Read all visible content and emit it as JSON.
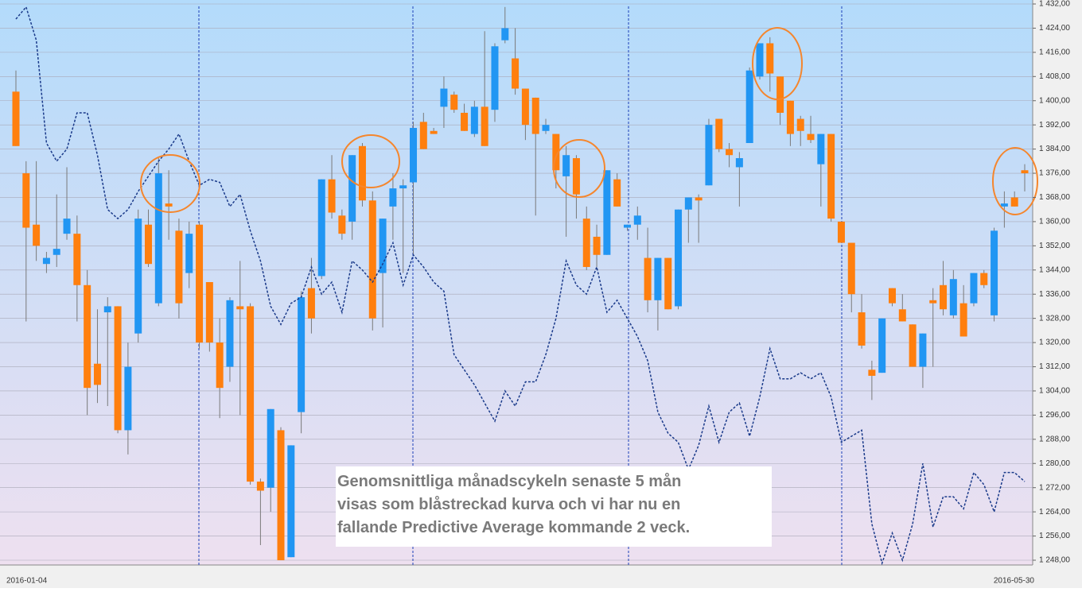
{
  "chart_data": {
    "type": "candlestick",
    "annotation": [
      "Genomsnittliga månadscykeln senaste 5 mån",
      "visas som blåstreckad kurva och vi har nu en",
      "fallande Predictive Average kommande 2 veck."
    ],
    "categories": [
      "2016-01-04",
      null,
      null,
      null,
      null,
      null,
      null,
      null,
      null,
      null,
      null,
      null,
      null,
      null,
      null,
      null,
      null,
      null,
      null,
      null,
      null,
      null,
      null,
      null,
      null,
      null,
      null,
      null,
      null,
      null,
      null,
      null,
      null,
      null,
      null,
      null,
      null,
      null,
      null,
      null,
      null,
      null,
      null,
      null,
      null,
      null,
      null,
      null,
      null,
      null,
      null,
      null,
      null,
      null,
      null,
      null,
      null,
      null,
      null,
      null,
      null,
      null,
      null,
      null,
      null,
      null,
      null,
      null,
      null,
      null,
      null,
      null,
      null,
      null,
      null,
      null,
      null,
      null,
      null,
      null,
      null,
      null,
      null,
      null,
      null,
      null,
      null,
      null,
      null,
      null,
      null,
      null,
      null,
      null,
      null,
      null,
      null,
      null,
      null,
      "2016-05-30"
    ],
    "open": [
      1403,
      1376,
      1359,
      1346,
      1349,
      1356,
      1356,
      1339,
      1313,
      1330,
      1332,
      1291,
      1323,
      1359,
      1333,
      1366,
      1357,
      1343,
      1359,
      1340,
      1320,
      1312,
      1332,
      1332,
      1274,
      1272,
      1291,
      1249,
      1297,
      1338,
      1342,
      1374,
      1362,
      1360,
      1385,
      1367,
      1343,
      1365,
      1371,
      1373,
      1393,
      1390,
      1398,
      1402,
      1396,
      1389,
      1398,
      1397,
      1420,
      1414,
      1404,
      1401,
      1390,
      1389,
      1375,
      1381,
      1361,
      1355,
      1349,
      1374,
      1358,
      1359,
      1348,
      1334,
      1348,
      1332,
      1364,
      1368,
      1372,
      1394,
      1384,
      1378,
      1386,
      1408,
      1419,
      1408,
      1400,
      1394,
      1389,
      1379,
      1389,
      1360,
      1353,
      1330,
      1311,
      1310,
      1338,
      1331,
      1326,
      1312,
      1334,
      1339,
      1329,
      1333,
      1333,
      1343,
      1329,
      1365,
      1368,
      1377
    ],
    "close": [
      1385,
      1358,
      1352,
      1348,
      1351,
      1361,
      1339,
      1305,
      1306,
      1332,
      1291,
      1312,
      1361,
      1346,
      1376,
      1365,
      1333,
      1356,
      1320,
      1320,
      1305,
      1334,
      1331,
      1274,
      1271,
      1298,
      1248,
      1286,
      1335,
      1328,
      1374,
      1363,
      1356,
      1382,
      1367,
      1328,
      1361,
      1371,
      1372,
      1391,
      1384,
      1389,
      1404,
      1397,
      1390,
      1398,
      1385,
      1418,
      1424,
      1404,
      1392,
      1389,
      1392,
      1377,
      1382,
      1369,
      1345,
      1349,
      1377,
      1365,
      1359,
      1362,
      1334,
      1348,
      1331,
      1364,
      1368,
      1367,
      1392,
      1384,
      1382,
      1381,
      1410,
      1419,
      1409,
      1396,
      1389,
      1390,
      1387,
      1389,
      1361,
      1353,
      1336,
      1319,
      1309,
      1328,
      1333,
      1327,
      1312,
      1323,
      1333,
      1331,
      1341,
      1322,
      1343,
      1339,
      1357,
      1366,
      1365,
      1376
    ],
    "high": [
      1410,
      1380,
      1380,
      1350,
      1369,
      1378,
      1362,
      1344,
      1331,
      1335,
      1332,
      1320,
      1364,
      1364,
      1381,
      1377,
      1361,
      1360,
      1360,
      1340,
      1328,
      1335,
      1347,
      1333,
      1275,
      1298,
      1292,
      1286,
      1337,
      1348,
      1374,
      1382,
      1364,
      1382,
      1386,
      1370,
      1361,
      1376,
      1374,
      1393,
      1396,
      1391,
      1408,
      1403,
      1399,
      1400,
      1423,
      1419,
      1431,
      1424,
      1404,
      1401,
      1394,
      1389,
      1385,
      1382,
      1365,
      1359,
      1377,
      1376,
      1359,
      1365,
      1358,
      1348,
      1348,
      1364,
      1368,
      1369,
      1394,
      1394,
      1386,
      1383,
      1411,
      1419,
      1421,
      1408,
      1400,
      1395,
      1395,
      1389,
      1389,
      1360,
      1353,
      1336,
      1314,
      1328,
      1338,
      1336,
      1326,
      1323,
      1338,
      1347,
      1344,
      1339,
      1343,
      1344,
      1358,
      1370,
      1370,
      1379
    ],
    "low": [
      1385,
      1327,
      1347,
      1343,
      1345,
      1354,
      1327,
      1296,
      1300,
      1299,
      1290,
      1283,
      1320,
      1345,
      1332,
      1354,
      1328,
      1338,
      1318,
      1317,
      1295,
      1307,
      1296,
      1273,
      1253,
      1264,
      1248,
      1249,
      1290,
      1323,
      1341,
      1361,
      1354,
      1354,
      1365,
      1324,
      1325,
      1354,
      1343,
      1349,
      1384,
      1389,
      1391,
      1396,
      1390,
      1388,
      1385,
      1393,
      1419,
      1402,
      1387,
      1362,
      1389,
      1371,
      1355,
      1361,
      1344,
      1345,
      1349,
      1365,
      1357,
      1354,
      1330,
      1324,
      1331,
      1331,
      1353,
      1353,
      1372,
      1383,
      1378,
      1365,
      1386,
      1407,
      1403,
      1392,
      1385,
      1385,
      1386,
      1365,
      1360,
      1353,
      1330,
      1318,
      1301,
      1310,
      1332,
      1327,
      1312,
      1305,
      1312,
      1329,
      1328,
      1322,
      1332,
      1338,
      1327,
      1358,
      1365,
      1370
    ],
    "up_color": "#2196f3",
    "down_color": "#ff7f0e",
    "line": {
      "color": "#1a3a8a",
      "values": [
        1427,
        1431,
        1420,
        1386,
        1380,
        1384,
        1396,
        1396,
        1382,
        1364,
        1361,
        1364,
        1370,
        1375,
        1380,
        1384,
        1389,
        1380,
        1372,
        1374,
        1373,
        1365,
        1369,
        1357,
        1347,
        1332,
        1326,
        1333,
        1335,
        1345,
        1336,
        1340,
        1330,
        1347,
        1344,
        1340,
        1346,
        1353,
        1339,
        1349,
        1345,
        1340,
        1337,
        1316,
        1311,
        1306,
        1300,
        1294,
        1304,
        1299,
        1307,
        1307,
        1316,
        1328,
        1347,
        1339,
        1336,
        1345,
        1330,
        1334,
        1328,
        1322,
        1314,
        1297,
        1290,
        1287,
        1278,
        1286,
        1299,
        1287,
        1297,
        1300,
        1289,
        1302,
        1318,
        1308,
        1308,
        1310,
        1308,
        1310,
        1302,
        1287,
        1289,
        1291,
        1260,
        1247,
        1257,
        1248,
        1260,
        1280,
        1259,
        1269,
        1269,
        1265,
        1277,
        1273,
        1264,
        1277,
        1277,
        1274
      ]
    },
    "ylim": [
      1248,
      1432
    ],
    "yticks": [
      {
        "value": 1248,
        "label": "1 248,00"
      },
      {
        "value": 1256,
        "label": "1 256,00"
      },
      {
        "value": 1264,
        "label": "1 264,00"
      },
      {
        "value": 1272,
        "label": "1 272,00"
      },
      {
        "value": 1280,
        "label": "1 280,00"
      },
      {
        "value": 1288,
        "label": "1 288,00"
      },
      {
        "value": 1296,
        "label": "1 296,00"
      },
      {
        "value": 1304,
        "label": "1 304,00"
      },
      {
        "value": 1312,
        "label": "1 312,00"
      },
      {
        "value": 1320,
        "label": "1 320,00"
      },
      {
        "value": 1328,
        "label": "1 328,00"
      },
      {
        "value": 1336,
        "label": "1 336,00"
      },
      {
        "value": 1344,
        "label": "1 344,00"
      },
      {
        "value": 1352,
        "label": "1 352,00"
      },
      {
        "value": 1360,
        "label": "1 360,00"
      },
      {
        "value": 1368,
        "label": "1 368,00"
      },
      {
        "value": 1376,
        "label": "1 376,00"
      },
      {
        "value": 1384,
        "label": "1 384,00"
      },
      {
        "value": 1392,
        "label": "1 392,00"
      },
      {
        "value": 1400,
        "label": "1 400,00"
      },
      {
        "value": 1408,
        "label": "1 408,00"
      },
      {
        "value": 1416,
        "label": "1 416,00"
      },
      {
        "value": 1424,
        "label": "1 424,00"
      },
      {
        "value": 1432,
        "label": "1 432,00"
      }
    ],
    "grid": true
  }
}
